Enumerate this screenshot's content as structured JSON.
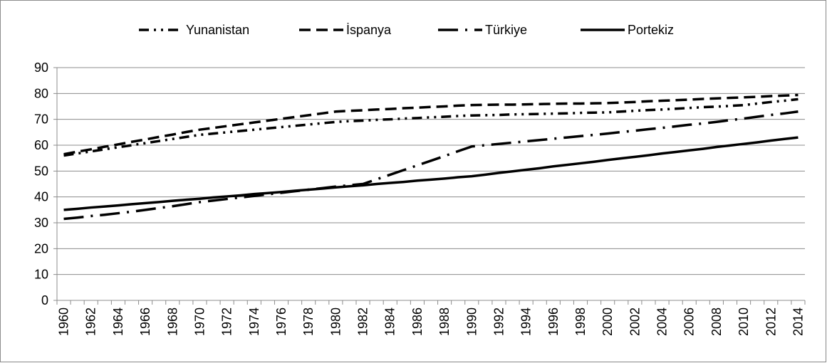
{
  "chart_data": {
    "type": "line",
    "categories": [
      1960,
      null,
      1962,
      null,
      1964,
      null,
      1966,
      null,
      1968,
      null,
      1970,
      null,
      1972,
      null,
      1974,
      null,
      1976,
      null,
      1978,
      null,
      1980,
      null,
      1982,
      null,
      1984,
      null,
      1986,
      null,
      1988,
      null,
      1990,
      null,
      1992,
      null,
      1994,
      null,
      1996,
      null,
      1998,
      null,
      2000,
      null,
      2002,
      null,
      2004,
      null,
      2006,
      null,
      2008,
      null,
      2010,
      null,
      2012,
      null,
      2014
    ],
    "ylim": [
      0,
      90
    ],
    "yticks": [
      0,
      10,
      20,
      30,
      40,
      50,
      60,
      70,
      80,
      90
    ],
    "grid": true,
    "legend": "top",
    "series": [
      {
        "name": "Yunanistan",
        "color": "#000000",
        "dash": "14,7,3,7,3,7",
        "values": [
          56.0,
          56.8,
          57.6,
          58.4,
          59.2,
          60.0,
          60.8,
          61.6,
          62.4,
          63.2,
          64.0,
          64.5,
          65.0,
          65.5,
          66.0,
          66.5,
          67.0,
          67.5,
          68.0,
          68.5,
          69.0,
          69.3,
          69.5,
          69.8,
          70.0,
          70.3,
          70.5,
          70.8,
          71.0,
          71.3,
          71.5,
          71.6,
          71.7,
          71.9,
          72.0,
          72.1,
          72.2,
          72.3,
          72.5,
          72.6,
          72.7,
          73.0,
          73.3,
          73.6,
          73.8,
          74.1,
          74.4,
          74.7,
          74.9,
          75.2,
          75.5,
          76.1,
          76.7,
          77.2,
          77.8
        ]
      },
      {
        "name": "İspanya",
        "color": "#000000",
        "dash": "16,8",
        "values": [
          56.5,
          57.5,
          58.4,
          59.4,
          60.3,
          61.3,
          62.2,
          63.2,
          64.1,
          65.1,
          66.0,
          66.7,
          67.4,
          68.1,
          68.8,
          69.5,
          70.2,
          70.9,
          71.6,
          72.3,
          73.0,
          73.3,
          73.5,
          73.8,
          74.0,
          74.3,
          74.5,
          74.8,
          75.0,
          75.3,
          75.5,
          75.6,
          75.7,
          75.7,
          75.8,
          75.9,
          76.0,
          76.1,
          76.1,
          76.2,
          76.3,
          76.5,
          76.7,
          77.0,
          77.2,
          77.4,
          77.6,
          77.9,
          78.1,
          78.3,
          78.5,
          78.7,
          79.0,
          79.2,
          79.4
        ]
      },
      {
        "name": "Türkiye",
        "color": "#000000",
        "dash": "28,10,3,10",
        "values": [
          31.5,
          32.0,
          32.6,
          33.1,
          33.7,
          34.3,
          35.0,
          35.7,
          36.4,
          37.2,
          38.0,
          38.6,
          39.2,
          39.8,
          40.4,
          41.0,
          41.6,
          42.2,
          42.8,
          43.4,
          44.0,
          44.5,
          45.0,
          46.8,
          48.6,
          50.4,
          52.2,
          54.0,
          55.8,
          57.7,
          59.5,
          60.0,
          60.5,
          61.0,
          61.5,
          62.0,
          62.5,
          63.0,
          63.5,
          64.0,
          64.5,
          65.1,
          65.6,
          66.2,
          66.7,
          67.3,
          67.9,
          68.4,
          69.0,
          69.7,
          70.3,
          71.0,
          71.7,
          72.3,
          73.0
        ]
      },
      {
        "name": "Portekiz",
        "color": "#000000",
        "dash": "none",
        "values": [
          35.0,
          35.4,
          35.9,
          36.3,
          36.7,
          37.2,
          37.6,
          38.0,
          38.5,
          38.9,
          39.3,
          39.8,
          40.2,
          40.6,
          41.1,
          41.5,
          41.9,
          42.4,
          42.8,
          43.2,
          43.7,
          44.1,
          44.5,
          45.0,
          45.4,
          45.8,
          46.3,
          46.7,
          47.1,
          47.6,
          48.0,
          48.6,
          49.3,
          49.9,
          50.5,
          51.1,
          51.8,
          52.4,
          53.0,
          53.6,
          54.3,
          54.9,
          55.5,
          56.1,
          56.8,
          57.4,
          58.0,
          58.6,
          59.3,
          59.9,
          60.5,
          61.1,
          61.8,
          62.4,
          63.0
        ]
      }
    ]
  }
}
